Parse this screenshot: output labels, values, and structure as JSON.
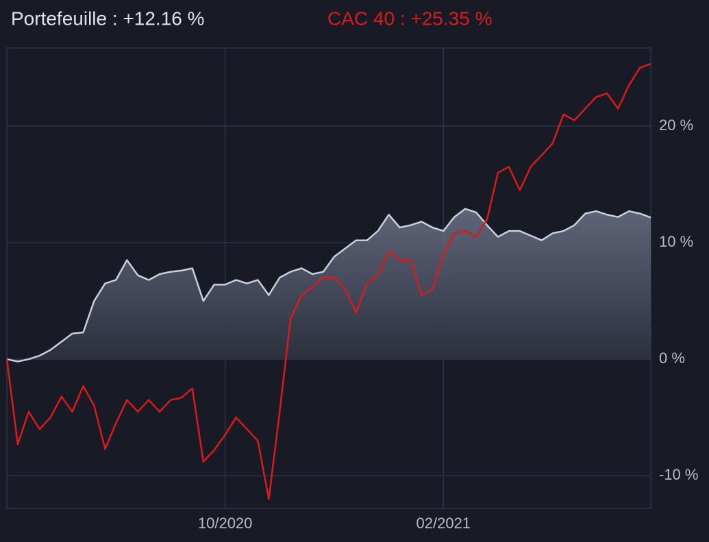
{
  "chart_data": {
    "type": "line",
    "categories": [
      null,
      null,
      null,
      null,
      null,
      null,
      null,
      null,
      null,
      null,
      null,
      null,
      null,
      null,
      null,
      null,
      null,
      null,
      null,
      null,
      "10/2020",
      null,
      null,
      null,
      null,
      null,
      null,
      null,
      null,
      null,
      null,
      null,
      null,
      null,
      null,
      null,
      null,
      null,
      null,
      null,
      "02/2021",
      null,
      null,
      null,
      null,
      null,
      null,
      null,
      null,
      null,
      null,
      null,
      null,
      null,
      null,
      null,
      null,
      null,
      null,
      null
    ],
    "series": [
      {
        "name": "Portefeuille : +12.16 %",
        "color": "#c8d0dc",
        "area": true,
        "values": [
          0,
          -0.2,
          0,
          0.3,
          0.8,
          1.5,
          2.2,
          2.3,
          5,
          6.5,
          6.8,
          8.5,
          7.2,
          6.8,
          7.3,
          7.5,
          7.6,
          7.8,
          5.0,
          6.4,
          6.4,
          6.8,
          6.5,
          6.8,
          5.5,
          7.0,
          7.5,
          7.8,
          7.3,
          7.5,
          8.8,
          9.5,
          10.2,
          10.2,
          11,
          12.4,
          11.3,
          11.5,
          11.8,
          11.3,
          11,
          12.2,
          12.9,
          12.6,
          11.5,
          10.5,
          11,
          11,
          10.6,
          10.2,
          10.8,
          11,
          11.5,
          12.5,
          12.7,
          12.4,
          12.2,
          12.7,
          12.5,
          12.16
        ]
      },
      {
        "name": "CAC 40 : +25.35 %",
        "color": "#d81b1b",
        "area": false,
        "values": [
          0,
          -7.3,
          -4.5,
          -6,
          -5,
          -3.2,
          -4.5,
          -2.3,
          -4,
          -7.7,
          -5.5,
          -3.5,
          -4.5,
          -3.5,
          -4.5,
          -3.5,
          -3.3,
          -2.5,
          -8.8,
          -7.8,
          -6.5,
          -5,
          -6,
          -7,
          -12,
          -4.5,
          3.5,
          5.5,
          6.2,
          7,
          7,
          6,
          4,
          6.5,
          7.2,
          9.3,
          8.5,
          8.5,
          5.5,
          6,
          9,
          10.8,
          11,
          10.5,
          12,
          16,
          16.5,
          14.5,
          16.5,
          17.5,
          18.5,
          21,
          20.5,
          21.5,
          22.5,
          22.8,
          21.5,
          23.5,
          25,
          25.35
        ]
      }
    ],
    "ylim": [
      -12.8,
      26.7
    ],
    "yticks": [
      {
        "value": -10,
        "label": "-10 %"
      },
      {
        "value": 0,
        "label": "0 %"
      },
      {
        "value": 10,
        "label": "10 %"
      },
      {
        "value": 20,
        "label": "20 %"
      }
    ],
    "grid": true
  }
}
